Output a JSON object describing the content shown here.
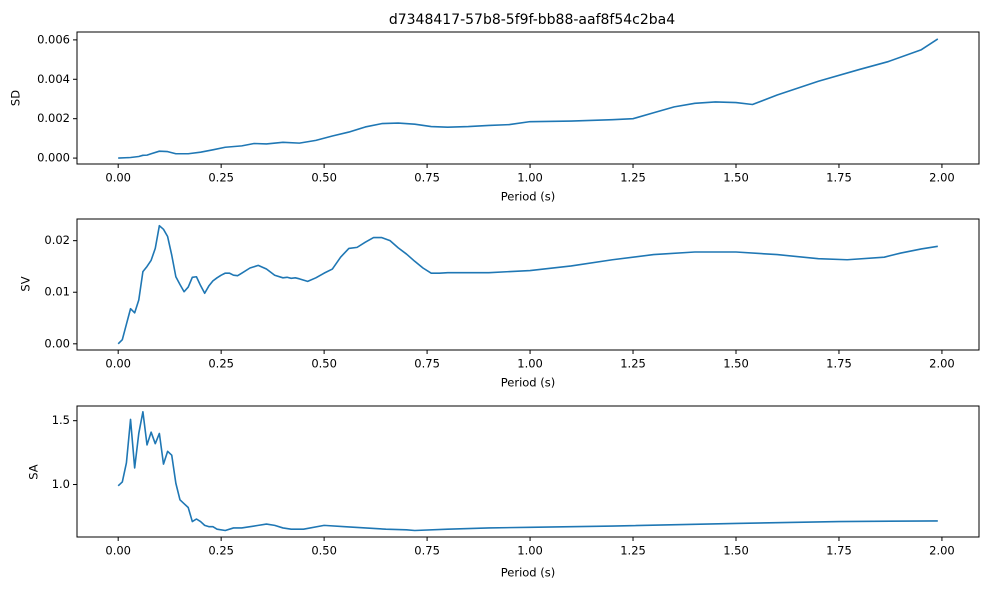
{
  "figure": {
    "title": "d7348417-57b8-5f9f-bb88-aaf8f54c2ba4"
  },
  "chart_data": [
    {
      "type": "line",
      "title": "d7348417-57b8-5f9f-bb88-aaf8f54c2ba4",
      "xlabel": "Period (s)",
      "ylabel": "SD",
      "xlim": [
        -0.1,
        2.09
      ],
      "ylim": [
        -0.0003,
        0.0064
      ],
      "xticks": [
        0.0,
        0.25,
        0.5,
        0.75,
        1.0,
        1.25,
        1.5,
        1.75,
        2.0
      ],
      "xticklabels": [
        "0.00",
        "0.25",
        "0.50",
        "0.75",
        "1.00",
        "1.25",
        "1.50",
        "1.75",
        "2.00"
      ],
      "yticks": [
        0.0,
        0.002,
        0.004,
        0.006
      ],
      "yticklabels": [
        "0.000",
        "0.002",
        "0.004",
        "0.006"
      ],
      "grid": false,
      "color": "#1f77b4",
      "series": [
        {
          "x": [
            0.0,
            0.03,
            0.05,
            0.06,
            0.07,
            0.08,
            0.1,
            0.12,
            0.14,
            0.17,
            0.2,
            0.23,
            0.26,
            0.3,
            0.33,
            0.36,
            0.4,
            0.44,
            0.48,
            0.52,
            0.56,
            0.6,
            0.64,
            0.68,
            0.72,
            0.76,
            0.8,
            0.85,
            0.9,
            0.95,
            1.0,
            1.1,
            1.2,
            1.25,
            1.3,
            1.35,
            1.4,
            1.45,
            1.5,
            1.54,
            1.6,
            1.7,
            1.8,
            1.87,
            1.95,
            1.99
          ],
          "y": [
            0.0,
            3e-05,
            8e-05,
            0.00014,
            0.00015,
            0.00022,
            0.00035,
            0.00033,
            0.00022,
            0.00022,
            0.0003,
            0.00042,
            0.00055,
            0.00062,
            0.00074,
            0.00072,
            0.0008,
            0.00076,
            0.0009,
            0.00112,
            0.00132,
            0.00158,
            0.00175,
            0.00178,
            0.00172,
            0.0016,
            0.00157,
            0.0016,
            0.00166,
            0.0017,
            0.00185,
            0.00188,
            0.00195,
            0.002,
            0.0023,
            0.0026,
            0.00278,
            0.00285,
            0.00282,
            0.00272,
            0.0032,
            0.0039,
            0.0045,
            0.0049,
            0.0055,
            0.00605
          ]
        }
      ]
    },
    {
      "type": "line",
      "xlabel": "Period (s)",
      "ylabel": "SV",
      "xlim": [
        -0.1,
        2.09
      ],
      "ylim": [
        -0.0012,
        0.0242
      ],
      "xticks": [
        0.0,
        0.25,
        0.5,
        0.75,
        1.0,
        1.25,
        1.5,
        1.75,
        2.0
      ],
      "xticklabels": [
        "0.00",
        "0.25",
        "0.50",
        "0.75",
        "1.00",
        "1.25",
        "1.50",
        "1.75",
        "2.00"
      ],
      "yticks": [
        0.0,
        0.01,
        0.02
      ],
      "yticklabels": [
        "0.00",
        "0.01",
        "0.02"
      ],
      "grid": false,
      "color": "#1f77b4",
      "series": [
        {
          "x": [
            0.0,
            0.01,
            0.02,
            0.03,
            0.04,
            0.05,
            0.06,
            0.07,
            0.08,
            0.09,
            0.1,
            0.11,
            0.12,
            0.13,
            0.14,
            0.15,
            0.16,
            0.17,
            0.18,
            0.19,
            0.2,
            0.21,
            0.22,
            0.23,
            0.24,
            0.25,
            0.26,
            0.27,
            0.28,
            0.29,
            0.3,
            0.32,
            0.34,
            0.36,
            0.38,
            0.4,
            0.41,
            0.42,
            0.43,
            0.44,
            0.46,
            0.48,
            0.5,
            0.52,
            0.54,
            0.56,
            0.58,
            0.6,
            0.62,
            0.64,
            0.66,
            0.68,
            0.7,
            0.72,
            0.74,
            0.76,
            0.78,
            0.8,
            0.9,
            1.0,
            1.1,
            1.2,
            1.3,
            1.4,
            1.5,
            1.6,
            1.7,
            1.77,
            1.86,
            1.9,
            1.95,
            1.99
          ],
          "y": [
            0.0,
            0.0008,
            0.0038,
            0.0068,
            0.006,
            0.0085,
            0.014,
            0.015,
            0.0162,
            0.0185,
            0.0229,
            0.0222,
            0.0208,
            0.0172,
            0.013,
            0.0115,
            0.0101,
            0.011,
            0.0129,
            0.013,
            0.0113,
            0.0098,
            0.0112,
            0.0122,
            0.0128,
            0.0133,
            0.0137,
            0.0137,
            0.0133,
            0.0132,
            0.0137,
            0.0147,
            0.0152,
            0.0145,
            0.0133,
            0.0128,
            0.0129,
            0.0127,
            0.0128,
            0.0126,
            0.0121,
            0.0128,
            0.0137,
            0.0145,
            0.0168,
            0.0185,
            0.0187,
            0.0197,
            0.0206,
            0.0206,
            0.02,
            0.0186,
            0.0174,
            0.016,
            0.0147,
            0.0137,
            0.0137,
            0.0138,
            0.0138,
            0.0142,
            0.0151,
            0.0163,
            0.0173,
            0.0178,
            0.0178,
            0.0173,
            0.0165,
            0.0163,
            0.0168,
            0.0176,
            0.0184,
            0.0189
          ]
        }
      ]
    },
    {
      "type": "line",
      "xlabel": "Period (s)",
      "ylabel": "SA",
      "xlim": [
        -0.1,
        2.09
      ],
      "ylim": [
        0.589,
        1.615
      ],
      "xticks": [
        0.0,
        0.25,
        0.5,
        0.75,
        1.0,
        1.25,
        1.5,
        1.75,
        2.0
      ],
      "xticklabels": [
        "0.00",
        "0.25",
        "0.50",
        "0.75",
        "1.00",
        "1.25",
        "1.50",
        "1.75",
        "2.00"
      ],
      "yticks": [
        1.0,
        1.5
      ],
      "yticklabels": [
        "1.0",
        "1.5"
      ],
      "grid": false,
      "color": "#1f77b4",
      "series": [
        {
          "x": [
            0.0,
            0.01,
            0.02,
            0.03,
            0.04,
            0.05,
            0.06,
            0.07,
            0.08,
            0.09,
            0.1,
            0.11,
            0.12,
            0.13,
            0.14,
            0.15,
            0.16,
            0.17,
            0.18,
            0.19,
            0.2,
            0.21,
            0.22,
            0.23,
            0.24,
            0.26,
            0.28,
            0.3,
            0.32,
            0.34,
            0.36,
            0.38,
            0.4,
            0.42,
            0.45,
            0.5,
            0.55,
            0.6,
            0.65,
            0.7,
            0.72,
            0.8,
            0.9,
            1.0,
            1.2,
            1.5,
            1.75,
            1.99
          ],
          "y": [
            0.99,
            1.02,
            1.17,
            1.51,
            1.13,
            1.4,
            1.57,
            1.31,
            1.41,
            1.32,
            1.4,
            1.16,
            1.26,
            1.23,
            1.01,
            0.88,
            0.85,
            0.82,
            0.71,
            0.73,
            0.71,
            0.68,
            0.67,
            0.67,
            0.65,
            0.64,
            0.66,
            0.66,
            0.67,
            0.68,
            0.69,
            0.68,
            0.66,
            0.65,
            0.65,
            0.68,
            0.67,
            0.66,
            0.65,
            0.645,
            0.64,
            0.65,
            0.66,
            0.665,
            0.675,
            0.695,
            0.71,
            0.715
          ]
        }
      ]
    }
  ]
}
